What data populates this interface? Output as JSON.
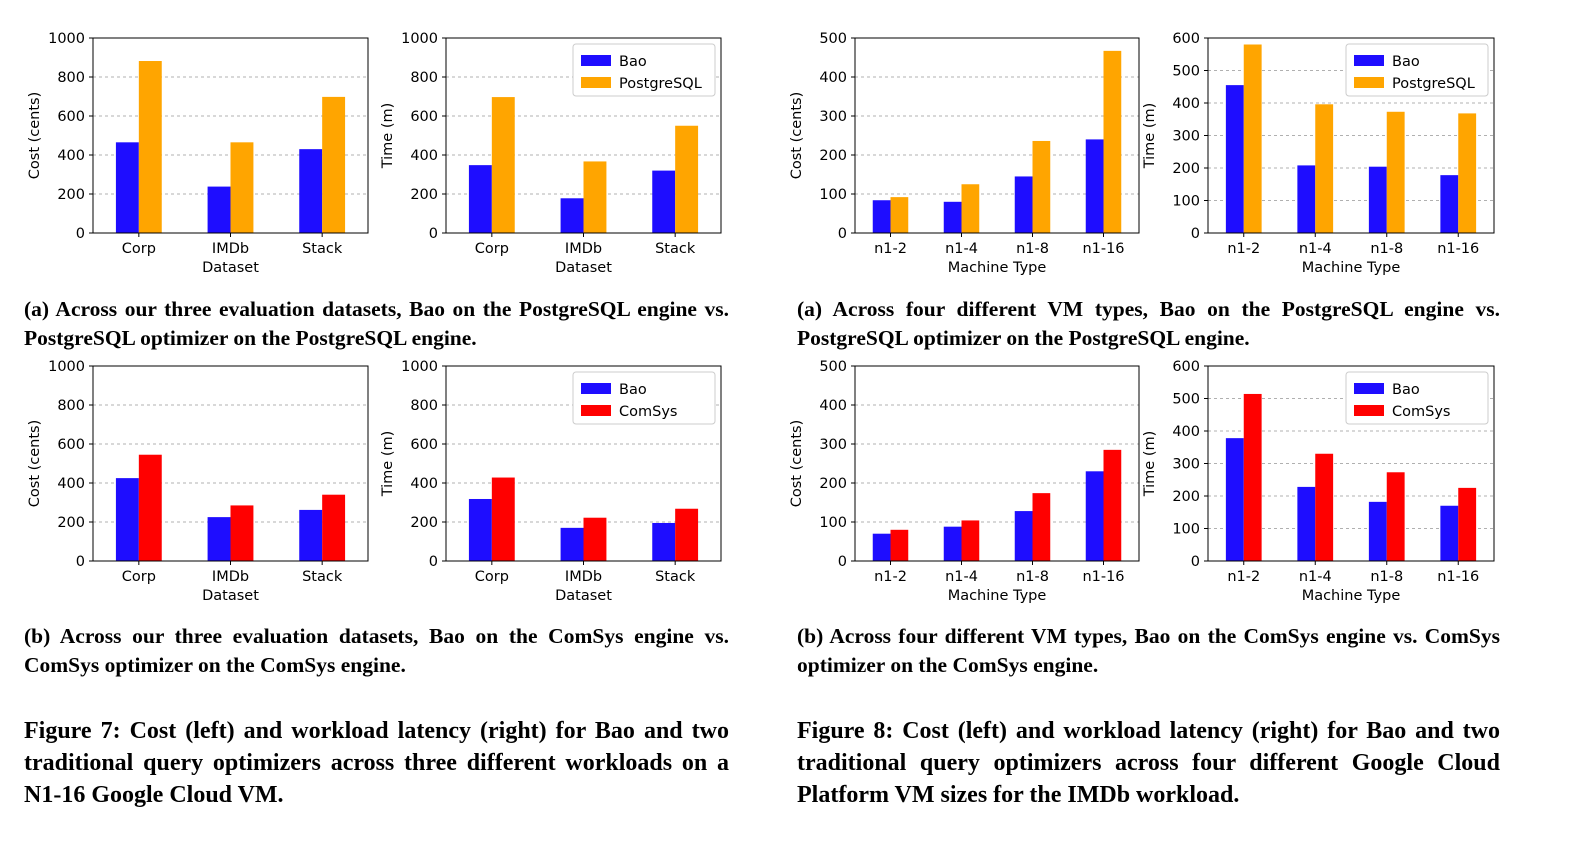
{
  "colors": {
    "bao": "#1e0dff",
    "postgres": "#ffa500",
    "comsys": "#ff0000",
    "grid": "#b0b0b0",
    "axis": "#000000"
  },
  "chart_data": [
    {
      "id": "f7a-cost",
      "type": "bar",
      "categories": [
        "Corp",
        "IMDb",
        "Stack"
      ],
      "series": [
        {
          "name": "Bao",
          "color": "#1e0dff",
          "values": [
            465,
            238,
            430
          ]
        },
        {
          "name": "PostgreSQL",
          "color": "#ffa500",
          "values": [
            882,
            465,
            698
          ]
        }
      ],
      "xlabel": "Dataset",
      "ylabel": "Cost (cents)",
      "ylim": [
        0,
        1000
      ],
      "yticks": [
        "0",
        "200",
        "400",
        "600",
        "800",
        "1000"
      ],
      "grid": true,
      "legend": null
    },
    {
      "id": "f7a-time",
      "type": "bar",
      "categories": [
        "Corp",
        "IMDb",
        "Stack"
      ],
      "series": [
        {
          "name": "Bao",
          "color": "#1e0dff",
          "values": [
            348,
            178,
            320
          ]
        },
        {
          "name": "PostgreSQL",
          "color": "#ffa500",
          "values": [
            697,
            367,
            550
          ]
        }
      ],
      "xlabel": "Dataset",
      "ylabel": "Time (m)",
      "ylim": [
        0,
        1000
      ],
      "yticks": [
        "0",
        "200",
        "400",
        "600",
        "800",
        "1000"
      ],
      "grid": true,
      "legend": "top-right"
    },
    {
      "id": "f8a-cost",
      "type": "bar",
      "categories": [
        "n1-2",
        "n1-4",
        "n1-8",
        "n1-16"
      ],
      "series": [
        {
          "name": "Bao",
          "color": "#1e0dff",
          "values": [
            84,
            80,
            145,
            240
          ]
        },
        {
          "name": "PostgreSQL",
          "color": "#ffa500",
          "values": [
            92,
            125,
            236,
            467
          ]
        }
      ],
      "xlabel": "Machine Type",
      "ylabel": "Cost (cents)",
      "ylim": [
        0,
        500
      ],
      "yticks": [
        "0",
        "100",
        "200",
        "300",
        "400",
        "500"
      ],
      "grid": true,
      "legend": null
    },
    {
      "id": "f8a-time",
      "type": "bar",
      "categories": [
        "n1-2",
        "n1-4",
        "n1-8",
        "n1-16"
      ],
      "series": [
        {
          "name": "Bao",
          "color": "#1e0dff",
          "values": [
            455,
            208,
            204,
            178
          ]
        },
        {
          "name": "PostgreSQL",
          "color": "#ffa500",
          "values": [
            580,
            396,
            373,
            368
          ]
        }
      ],
      "xlabel": "Machine Type",
      "ylabel": "Time (m)",
      "ylim": [
        0,
        600
      ],
      "yticks": [
        "0",
        "100",
        "200",
        "300",
        "400",
        "500",
        "600"
      ],
      "grid": true,
      "legend": "top-right"
    },
    {
      "id": "f7b-cost",
      "type": "bar",
      "categories": [
        "Corp",
        "IMDb",
        "Stack"
      ],
      "series": [
        {
          "name": "Bao",
          "color": "#1e0dff",
          "values": [
            425,
            225,
            262
          ]
        },
        {
          "name": "ComSys",
          "color": "#ff0000",
          "values": [
            545,
            285,
            340
          ]
        }
      ],
      "xlabel": "Dataset",
      "ylabel": "Cost (cents)",
      "ylim": [
        0,
        1000
      ],
      "yticks": [
        "0",
        "200",
        "400",
        "600",
        "800",
        "1000"
      ],
      "grid": true,
      "legend": null
    },
    {
      "id": "f7b-time",
      "type": "bar",
      "categories": [
        "Corp",
        "IMDb",
        "Stack"
      ],
      "series": [
        {
          "name": "Bao",
          "color": "#1e0dff",
          "values": [
            318,
            170,
            195
          ]
        },
        {
          "name": "ComSys",
          "color": "#ff0000",
          "values": [
            428,
            222,
            268
          ]
        }
      ],
      "xlabel": "Dataset",
      "ylabel": "Time (m)",
      "ylim": [
        0,
        1000
      ],
      "yticks": [
        "0",
        "200",
        "400",
        "600",
        "800",
        "1000"
      ],
      "grid": true,
      "legend": "top-right"
    },
    {
      "id": "f8b-cost",
      "type": "bar",
      "categories": [
        "n1-2",
        "n1-4",
        "n1-8",
        "n1-16"
      ],
      "series": [
        {
          "name": "Bao",
          "color": "#1e0dff",
          "values": [
            70,
            88,
            128,
            230
          ]
        },
        {
          "name": "ComSys",
          "color": "#ff0000",
          "values": [
            80,
            104,
            174,
            285
          ]
        }
      ],
      "xlabel": "Machine Type",
      "ylabel": "Cost (cents)",
      "ylim": [
        0,
        500
      ],
      "yticks": [
        "0",
        "100",
        "200",
        "300",
        "400",
        "500"
      ],
      "grid": true,
      "legend": null
    },
    {
      "id": "f8b-time",
      "type": "bar",
      "categories": [
        "n1-2",
        "n1-4",
        "n1-8",
        "n1-16"
      ],
      "series": [
        {
          "name": "Bao",
          "color": "#1e0dff",
          "values": [
            378,
            228,
            182,
            170
          ]
        },
        {
          "name": "ComSys",
          "color": "#ff0000",
          "values": [
            514,
            330,
            273,
            225
          ]
        }
      ],
      "xlabel": "Machine Type",
      "ylabel": "Time (m)",
      "ylim": [
        0,
        600
      ],
      "yticks": [
        "0",
        "100",
        "200",
        "300",
        "400",
        "500",
        "600"
      ],
      "grid": true,
      "legend": "top-right"
    }
  ],
  "captions": {
    "f7a": "(a) Across our three evaluation datasets, Bao on the PostgreSQL engine vs. PostgreSQL optimizer on the PostgreSQL engine.",
    "f8a": "(a) Across four different VM types, Bao on the PostgreSQL engine vs. PostgreSQL optimizer on the PostgreSQL engine.",
    "f7b": "(b) Across our three evaluation datasets, Bao on the ComSys engine vs. ComSys optimizer on the ComSys engine.",
    "f8b": "(b) Across four different VM types, Bao on the ComSys engine vs. ComSys optimizer on the ComSys engine.",
    "fig7": "Figure 7: Cost (left) and workload latency (right) for Bao and two traditional query optimizers across three different workloads on a N1-16 Google Cloud VM.",
    "fig8": "Figure 8: Cost (left) and workload latency (right) for Bao and two traditional query optimizers across four different Google Cloud Platform VM sizes for the IMDb workload."
  }
}
